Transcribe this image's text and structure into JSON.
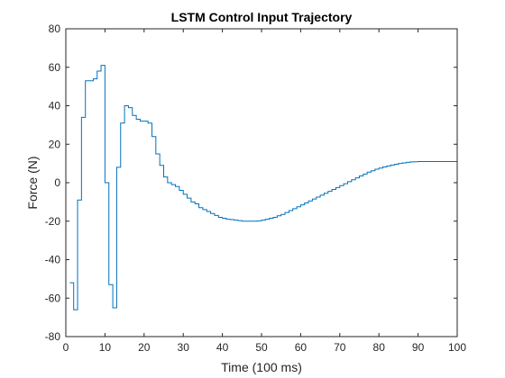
{
  "chart_data": {
    "type": "line",
    "step": true,
    "title": "LSTM Control Input Trajectory",
    "xlabel": "Time (100 ms)",
    "ylabel": "Force (N)",
    "xlim": [
      0,
      100
    ],
    "ylim": [
      -80,
      80
    ],
    "xticks": [
      0,
      10,
      20,
      30,
      40,
      50,
      60,
      70,
      80,
      90,
      100
    ],
    "yticks": [
      -80,
      -60,
      -40,
      -20,
      0,
      20,
      40,
      60,
      80
    ],
    "grid": false,
    "box": true,
    "series": [
      {
        "color": "#0072BD",
        "x": [
          1,
          2,
          3,
          4,
          5,
          6,
          7,
          8,
          9,
          10,
          11,
          12,
          13,
          14,
          15,
          16,
          17,
          18,
          19,
          20,
          21,
          22,
          23,
          24,
          25,
          26,
          27,
          28,
          29,
          30,
          31,
          32,
          33,
          34,
          35,
          36,
          37,
          38,
          39,
          40,
          41,
          42,
          43,
          44,
          45,
          46,
          47,
          48,
          49,
          50,
          51,
          52,
          53,
          54,
          55,
          56,
          57,
          58,
          59,
          60,
          61,
          62,
          63,
          64,
          65,
          66,
          67,
          68,
          69,
          70,
          71,
          72,
          73,
          74,
          75,
          76,
          77,
          78,
          79,
          80,
          81,
          82,
          83,
          84,
          85,
          86,
          87,
          88,
          89,
          90,
          91,
          92,
          93,
          94,
          95,
          96,
          97,
          98,
          99,
          100
        ],
        "y": [
          -52,
          -66,
          -9,
          34,
          53,
          53,
          54,
          58,
          61,
          0,
          -53,
          -65,
          8,
          31,
          40,
          39,
          35,
          33,
          32,
          32,
          31,
          24,
          15,
          9,
          3,
          0,
          -1,
          -2,
          -4,
          -6,
          -8,
          -10,
          -11,
          -13,
          -14,
          -15,
          -16,
          -17,
          -18,
          -18.5,
          -19,
          -19.2,
          -19.5,
          -19.7,
          -20,
          -20,
          -20,
          -20,
          -19.8,
          -19.5,
          -19,
          -18.5,
          -18,
          -17.2,
          -16.5,
          -15.5,
          -14.5,
          -13.5,
          -12.5,
          -11.5,
          -10.5,
          -9.5,
          -8.5,
          -7.5,
          -6.5,
          -5.5,
          -4.5,
          -3.5,
          -2.5,
          -1.5,
          -0.5,
          0.5,
          1.5,
          2.5,
          3.5,
          4.5,
          5.5,
          6.2,
          7,
          7.6,
          8.2,
          8.7,
          9.2,
          9.6,
          10,
          10.3,
          10.6,
          10.8,
          10.9,
          11,
          11,
          11,
          11,
          11,
          11,
          11,
          11,
          11,
          11,
          11
        ]
      }
    ]
  }
}
